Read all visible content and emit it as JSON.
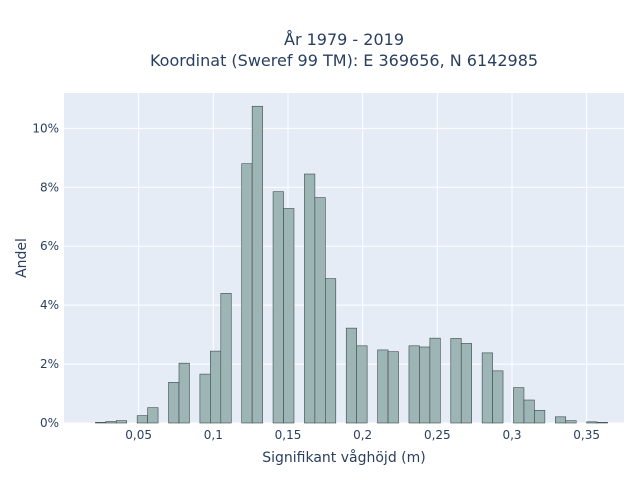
{
  "chart_data": {
    "type": "bar",
    "title_lines": [
      "År 1979 - 2019",
      "Koordinat (Sweref 99 TM): E 369656, N 6142985"
    ],
    "xlabel": "Signifikant våghöjd (m)",
    "ylabel": "Andel",
    "xlim": [
      0.0,
      0.375
    ],
    "ylim": [
      0,
      0.112
    ],
    "x_ticks": [
      {
        "value": 0.05,
        "label": "0,05"
      },
      {
        "value": 0.1,
        "label": "0,1"
      },
      {
        "value": 0.15,
        "label": "0,15"
      },
      {
        "value": 0.2,
        "label": "0,2"
      },
      {
        "value": 0.25,
        "label": "0,25"
      },
      {
        "value": 0.3,
        "label": "0,3"
      },
      {
        "value": 0.35,
        "label": "0,35"
      }
    ],
    "y_ticks": [
      {
        "value": 0,
        "label": "0%"
      },
      {
        "value": 0.02,
        "label": "2%"
      },
      {
        "value": 0.04,
        "label": "4%"
      },
      {
        "value": 0.06,
        "label": "6%"
      },
      {
        "value": 0.08,
        "label": "8%"
      },
      {
        "value": 0.1,
        "label": "10%"
      }
    ],
    "bin_width": 0.007,
    "bins": [
      {
        "x": 0.021,
        "y": 0.0002
      },
      {
        "x": 0.028,
        "y": 0.0005
      },
      {
        "x": 0.035,
        "y": 0.0008
      },
      {
        "x": 0.049,
        "y": 0.0025
      },
      {
        "x": 0.056,
        "y": 0.0052
      },
      {
        "x": 0.07,
        "y": 0.0138
      },
      {
        "x": 0.077,
        "y": 0.0203
      },
      {
        "x": 0.091,
        "y": 0.0166
      },
      {
        "x": 0.098,
        "y": 0.0244
      },
      {
        "x": 0.105,
        "y": 0.044
      },
      {
        "x": 0.119,
        "y": 0.088
      },
      {
        "x": 0.126,
        "y": 0.1075
      },
      {
        "x": 0.14,
        "y": 0.0785
      },
      {
        "x": 0.147,
        "y": 0.0728
      },
      {
        "x": 0.161,
        "y": 0.0845
      },
      {
        "x": 0.168,
        "y": 0.0765
      },
      {
        "x": 0.175,
        "y": 0.049
      },
      {
        "x": 0.189,
        "y": 0.0322
      },
      {
        "x": 0.196,
        "y": 0.0262
      },
      {
        "x": 0.21,
        "y": 0.0248
      },
      {
        "x": 0.217,
        "y": 0.0242
      },
      {
        "x": 0.231,
        "y": 0.0262
      },
      {
        "x": 0.238,
        "y": 0.0258
      },
      {
        "x": 0.245,
        "y": 0.0288
      },
      {
        "x": 0.259,
        "y": 0.0287
      },
      {
        "x": 0.266,
        "y": 0.027
      },
      {
        "x": 0.28,
        "y": 0.0238
      },
      {
        "x": 0.287,
        "y": 0.0177
      },
      {
        "x": 0.301,
        "y": 0.012
      },
      {
        "x": 0.308,
        "y": 0.0078
      },
      {
        "x": 0.315,
        "y": 0.0043
      },
      {
        "x": 0.329,
        "y": 0.0021
      },
      {
        "x": 0.336,
        "y": 0.0008
      },
      {
        "x": 0.35,
        "y": 0.0004
      },
      {
        "x": 0.357,
        "y": 0.0002
      }
    ],
    "bar_color": "#9db5b5",
    "bar_outline_color": "#3a4a4a",
    "plot_background": "#e5ecf6",
    "grid": true,
    "legend": "none"
  }
}
